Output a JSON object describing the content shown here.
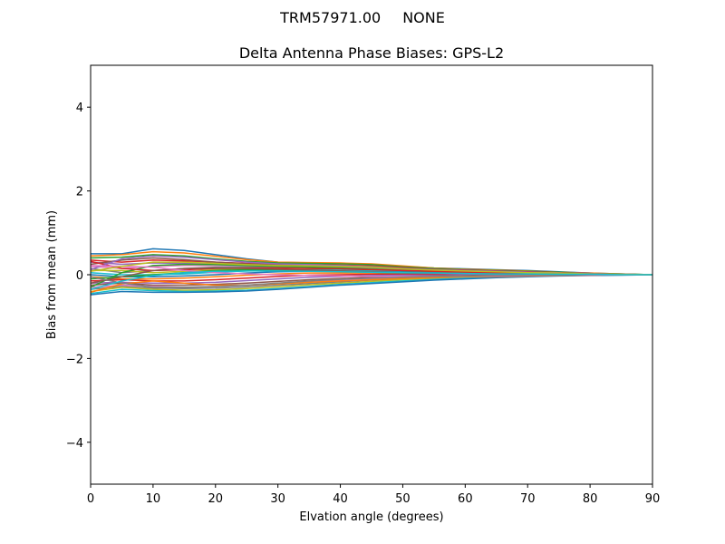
{
  "figure": {
    "suptitle_left": "TRM57971.00",
    "suptitle_right": "NONE"
  },
  "chart_data": {
    "type": "line",
    "title": "Delta Antenna Phase Biases: GPS-L2",
    "xlabel": "Elvation angle (degrees)",
    "ylabel": "Bias from mean (mm)",
    "xlim": [
      0,
      90
    ],
    "ylim": [
      -5,
      5
    ],
    "xticks": [
      0,
      10,
      20,
      30,
      40,
      50,
      60,
      70,
      80,
      90
    ],
    "xtick_labels": [
      "0",
      "10",
      "20",
      "30",
      "40",
      "50",
      "60",
      "70",
      "80",
      "90"
    ],
    "yticks": [
      -4,
      -2,
      0,
      2,
      4
    ],
    "ytick_labels": [
      "−4",
      "−2",
      "0",
      "2",
      "4"
    ],
    "grid": false,
    "legend": "none",
    "colors": [
      "#1f77b4",
      "#ff7f0e",
      "#2ca02c",
      "#d62728",
      "#9467bd",
      "#8c564b",
      "#e377c2",
      "#7f7f7f",
      "#bcbd22",
      "#17becf"
    ],
    "x": [
      0,
      5,
      10,
      15,
      20,
      25,
      30,
      35,
      40,
      45,
      50,
      55,
      60,
      65,
      70,
      75,
      80,
      85,
      90
    ],
    "series": [
      {
        "values": [
          0.5,
          0.5,
          0.62,
          0.58,
          0.48,
          0.38,
          0.3,
          0.28,
          0.27,
          0.25,
          0.2,
          0.16,
          0.14,
          0.12,
          0.1,
          0.07,
          0.04,
          0.02,
          0.0
        ]
      },
      {
        "values": [
          0.45,
          0.48,
          0.55,
          0.52,
          0.44,
          0.36,
          0.3,
          0.29,
          0.28,
          0.26,
          0.21,
          0.16,
          0.13,
          0.11,
          0.09,
          0.06,
          0.04,
          0.02,
          0.0
        ]
      },
      {
        "values": [
          0.4,
          0.42,
          0.48,
          0.45,
          0.38,
          0.32,
          0.28,
          0.27,
          0.26,
          0.24,
          0.19,
          0.15,
          0.12,
          0.1,
          0.08,
          0.06,
          0.03,
          0.02,
          0.0
        ]
      },
      {
        "values": [
          0.35,
          0.3,
          0.35,
          0.33,
          0.3,
          0.27,
          0.25,
          0.24,
          0.23,
          0.21,
          0.17,
          0.13,
          0.11,
          0.09,
          0.07,
          0.05,
          0.03,
          0.01,
          0.0
        ]
      },
      {
        "values": [
          0.3,
          0.25,
          0.28,
          0.27,
          0.25,
          0.23,
          0.22,
          0.21,
          0.2,
          0.18,
          0.15,
          0.12,
          0.1,
          0.08,
          0.06,
          0.04,
          0.03,
          0.01,
          0.0
        ]
      },
      {
        "values": [
          0.25,
          0.35,
          0.4,
          0.36,
          0.3,
          0.26,
          0.24,
          0.23,
          0.22,
          0.2,
          0.16,
          0.13,
          0.1,
          0.08,
          0.06,
          0.04,
          0.02,
          0.01,
          0.0
        ]
      },
      {
        "values": [
          0.2,
          0.15,
          0.2,
          0.22,
          0.22,
          0.21,
          0.2,
          0.19,
          0.18,
          0.16,
          0.13,
          0.1,
          0.08,
          0.07,
          0.05,
          0.04,
          0.02,
          0.01,
          0.0
        ]
      },
      {
        "values": [
          0.15,
          0.05,
          0.1,
          0.15,
          0.18,
          0.18,
          0.18,
          0.18,
          0.17,
          0.15,
          0.12,
          0.09,
          0.07,
          0.06,
          0.05,
          0.03,
          0.02,
          0.01,
          0.0
        ]
      },
      {
        "values": [
          0.1,
          0.1,
          0.05,
          0.08,
          0.12,
          0.14,
          0.15,
          0.15,
          0.14,
          0.13,
          0.1,
          0.08,
          0.06,
          0.05,
          0.04,
          0.03,
          0.02,
          0.01,
          0.0
        ]
      },
      {
        "values": [
          0.05,
          0.0,
          0.0,
          0.02,
          0.06,
          0.09,
          0.11,
          0.12,
          0.11,
          0.1,
          0.08,
          0.06,
          0.05,
          0.04,
          0.03,
          0.02,
          0.01,
          0.0,
          0.0
        ]
      },
      {
        "values": [
          0.0,
          -0.05,
          -0.05,
          -0.03,
          0.0,
          0.04,
          0.07,
          0.08,
          0.08,
          0.07,
          0.06,
          0.05,
          0.04,
          0.03,
          0.02,
          0.01,
          0.01,
          0.0,
          0.0
        ]
      },
      {
        "values": [
          -0.05,
          -0.1,
          -0.1,
          -0.08,
          -0.05,
          -0.01,
          0.02,
          0.04,
          0.04,
          0.04,
          0.03,
          0.03,
          0.02,
          0.02,
          0.01,
          0.01,
          0.0,
          0.0,
          0.0
        ]
      },
      {
        "values": [
          -0.1,
          -0.05,
          0.0,
          0.05,
          0.1,
          0.12,
          0.12,
          0.1,
          0.08,
          0.06,
          0.04,
          0.03,
          0.02,
          0.01,
          0.01,
          0.0,
          0.0,
          0.0,
          0.0
        ]
      },
      {
        "values": [
          -0.15,
          -0.12,
          -0.15,
          -0.15,
          -0.12,
          -0.08,
          -0.04,
          -0.01,
          0.0,
          0.01,
          0.01,
          0.01,
          0.01,
          0.01,
          0.0,
          0.0,
          0.0,
          0.0,
          0.0
        ]
      },
      {
        "values": [
          -0.2,
          -0.18,
          -0.2,
          -0.2,
          -0.18,
          -0.14,
          -0.1,
          -0.06,
          -0.04,
          -0.02,
          -0.01,
          -0.01,
          0.0,
          0.0,
          0.0,
          0.0,
          0.0,
          0.0,
          0.0
        ]
      },
      {
        "values": [
          -0.25,
          -0.2,
          -0.25,
          -0.25,
          -0.23,
          -0.2,
          -0.16,
          -0.12,
          -0.09,
          -0.06,
          -0.04,
          -0.03,
          -0.02,
          -0.01,
          -0.01,
          0.0,
          0.0,
          0.0,
          0.0
        ]
      },
      {
        "values": [
          -0.3,
          -0.25,
          -0.28,
          -0.3,
          -0.28,
          -0.25,
          -0.21,
          -0.17,
          -0.13,
          -0.1,
          -0.07,
          -0.05,
          -0.03,
          -0.02,
          -0.01,
          -0.01,
          0.0,
          0.0,
          0.0
        ]
      },
      {
        "values": [
          -0.35,
          -0.28,
          -0.32,
          -0.33,
          -0.32,
          -0.29,
          -0.25,
          -0.21,
          -0.17,
          -0.13,
          -0.1,
          -0.07,
          -0.05,
          -0.03,
          -0.02,
          -0.01,
          -0.01,
          0.0,
          0.0
        ]
      },
      {
        "values": [
          -0.4,
          -0.3,
          -0.35,
          -0.37,
          -0.36,
          -0.33,
          -0.29,
          -0.24,
          -0.2,
          -0.16,
          -0.12,
          -0.09,
          -0.06,
          -0.04,
          -0.03,
          -0.02,
          -0.01,
          0.0,
          0.0
        ]
      },
      {
        "values": [
          -0.45,
          -0.35,
          -0.38,
          -0.4,
          -0.39,
          -0.37,
          -0.33,
          -0.28,
          -0.23,
          -0.19,
          -0.15,
          -0.11,
          -0.08,
          -0.06,
          -0.04,
          -0.02,
          -0.01,
          0.0,
          0.0
        ]
      },
      {
        "values": [
          -0.48,
          -0.4,
          -0.42,
          -0.42,
          -0.41,
          -0.39,
          -0.35,
          -0.3,
          -0.25,
          -0.21,
          -0.17,
          -0.13,
          -0.1,
          -0.07,
          -0.05,
          -0.03,
          -0.02,
          -0.01,
          0.0
        ]
      },
      {
        "values": [
          -0.42,
          -0.22,
          -0.15,
          -0.2,
          -0.25,
          -0.25,
          -0.22,
          -0.18,
          -0.15,
          -0.12,
          -0.09,
          -0.07,
          -0.05,
          -0.04,
          -0.03,
          -0.02,
          -0.01,
          0.0,
          0.0
        ]
      },
      {
        "values": [
          -0.3,
          0.05,
          0.22,
          0.25,
          0.24,
          0.22,
          0.2,
          0.18,
          0.16,
          0.13,
          0.1,
          0.08,
          0.06,
          0.05,
          0.04,
          0.03,
          0.02,
          0.01,
          0.0
        ]
      },
      {
        "values": [
          0.32,
          0.15,
          0.1,
          0.12,
          0.15,
          0.16,
          0.16,
          0.15,
          0.14,
          0.12,
          0.1,
          0.08,
          0.06,
          0.05,
          0.04,
          0.03,
          0.02,
          0.01,
          0.0
        ]
      },
      {
        "values": [
          0.12,
          0.38,
          0.45,
          0.42,
          0.36,
          0.3,
          0.26,
          0.24,
          0.22,
          0.19,
          0.15,
          0.12,
          0.1,
          0.08,
          0.06,
          0.04,
          0.02,
          0.01,
          0.0
        ]
      },
      {
        "values": [
          -0.2,
          -0.05,
          0.1,
          0.15,
          0.16,
          0.15,
          0.13,
          0.11,
          0.09,
          0.07,
          0.05,
          0.04,
          0.03,
          0.02,
          0.02,
          0.01,
          0.01,
          0.0,
          0.0
        ]
      },
      {
        "values": [
          0.22,
          0.2,
          0.18,
          0.1,
          0.05,
          0.02,
          0.0,
          -0.02,
          -0.03,
          -0.04,
          -0.04,
          -0.04,
          -0.03,
          -0.03,
          -0.02,
          -0.01,
          -0.01,
          0.0,
          0.0
        ]
      },
      {
        "values": [
          -0.05,
          -0.2,
          -0.3,
          -0.3,
          -0.28,
          -0.25,
          -0.2,
          -0.15,
          -0.11,
          -0.08,
          -0.06,
          -0.04,
          -0.03,
          -0.02,
          -0.01,
          -0.01,
          0.0,
          0.0,
          0.0
        ]
      },
      {
        "values": [
          0.08,
          0.2,
          0.3,
          0.3,
          0.27,
          0.24,
          0.22,
          0.21,
          0.2,
          0.18,
          0.14,
          0.11,
          0.09,
          0.07,
          0.05,
          0.04,
          0.02,
          0.01,
          0.0
        ]
      },
      {
        "values": [
          -0.35,
          -0.15,
          -0.02,
          0.05,
          0.08,
          0.09,
          0.09,
          0.08,
          0.07,
          0.06,
          0.05,
          0.04,
          0.03,
          0.02,
          0.02,
          0.01,
          0.01,
          0.0,
          0.0
        ]
      }
    ]
  }
}
